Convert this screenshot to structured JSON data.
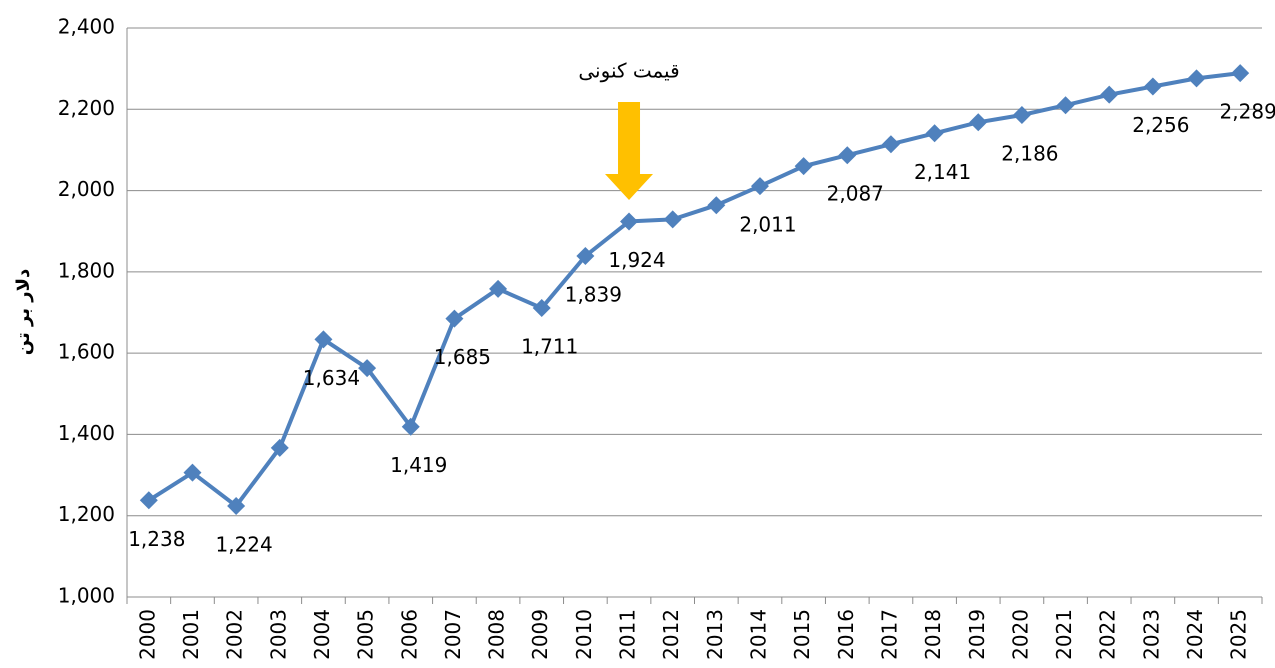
{
  "chart_data": {
    "type": "line",
    "y_label": "دلار بر تن",
    "annotations": [
      "قیمت کنونی"
    ],
    "categories": [
      "2000",
      "2001",
      "2002",
      "2003",
      "2004",
      "2005",
      "2006",
      "2007",
      "2008",
      "2009",
      "2010",
      "2011",
      "2012",
      "2013",
      "2014",
      "2015",
      "2016",
      "2017",
      "2018",
      "2019",
      "2020",
      "2021",
      "2022",
      "2023",
      "2024",
      "2025"
    ],
    "series": [
      {
        "color": "#4f81bd",
        "values": [
          1238,
          1306,
          1224,
          1367,
          1634,
          1563,
          1419,
          1685,
          1758,
          1711,
          1839,
          1924,
          1929,
          1964,
          2011,
          2060,
          2087,
          2114,
          2141,
          2168,
          2186,
          2210,
          2236,
          2256,
          2276,
          2289
        ],
        "value_labels": [
          "1,238",
          null,
          "1,224",
          null,
          "1,634",
          null,
          "1,419",
          "1,685",
          null,
          "1,711",
          "1,839",
          "1,924",
          null,
          null,
          "2,011",
          null,
          "2,087",
          null,
          "2,141",
          null,
          "2,186",
          null,
          null,
          "2,256",
          null,
          "2,289"
        ]
      }
    ],
    "ylim": [
      1000,
      2400
    ],
    "yticks": [
      {
        "value": 1000,
        "label": "1,000"
      },
      {
        "value": 1200,
        "label": "1,200"
      },
      {
        "value": 1400,
        "label": "1,400"
      },
      {
        "value": 1600,
        "label": "1,600"
      },
      {
        "value": 1800,
        "label": "1,800"
      },
      {
        "value": 2000,
        "label": "2,000"
      },
      {
        "value": 2200,
        "label": "2,200"
      },
      {
        "value": 2400,
        "label": "2,400"
      }
    ],
    "grid": true,
    "arrow_color": "#ffc000"
  }
}
